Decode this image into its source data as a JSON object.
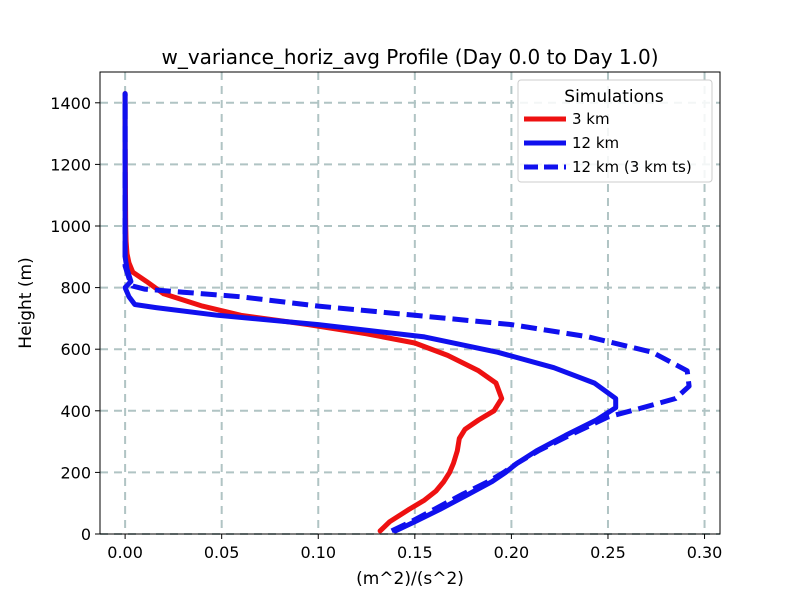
{
  "chart_data": {
    "type": "line",
    "title": "w_variance_horiz_avg Profile (Day 0.0 to Day 1.0)",
    "xlabel": "(m^2)/(s^2)",
    "ylabel": "Height (m)",
    "xlim": [
      -0.013,
      0.308
    ],
    "ylim": [
      0,
      1500
    ],
    "x_ticks": [
      0.0,
      0.05,
      0.1,
      0.15,
      0.2,
      0.25,
      0.3
    ],
    "x_tick_labels": [
      "0.00",
      "0.05",
      "0.10",
      "0.15",
      "0.20",
      "0.25",
      "0.30"
    ],
    "y_ticks": [
      0,
      200,
      400,
      600,
      800,
      1000,
      1200,
      1400
    ],
    "y_tick_labels": [
      "0",
      "200",
      "400",
      "600",
      "800",
      "1000",
      "1200",
      "1400"
    ],
    "grid": true,
    "legend": {
      "title": "Simulations",
      "location": "top-right"
    },
    "series": [
      {
        "name": "3 km",
        "color": "#ee1111",
        "style": "solid",
        "points": [
          [
            0.132,
            10
          ],
          [
            0.137,
            40
          ],
          [
            0.147,
            80
          ],
          [
            0.155,
            110
          ],
          [
            0.161,
            140
          ],
          [
            0.165,
            170
          ],
          [
            0.168,
            200
          ],
          [
            0.17,
            230
          ],
          [
            0.172,
            270
          ],
          [
            0.173,
            310
          ],
          [
            0.176,
            340
          ],
          [
            0.183,
            370
          ],
          [
            0.191,
            400
          ],
          [
            0.195,
            440
          ],
          [
            0.192,
            490
          ],
          [
            0.183,
            530
          ],
          [
            0.167,
            580
          ],
          [
            0.15,
            620
          ],
          [
            0.125,
            650
          ],
          [
            0.095,
            680
          ],
          [
            0.06,
            710
          ],
          [
            0.04,
            740
          ],
          [
            0.02,
            780
          ],
          [
            0.011,
            820
          ],
          [
            0.004,
            850
          ],
          [
            0.002,
            880
          ],
          [
            0.001,
            910
          ],
          [
            0.0005,
            950
          ],
          [
            0.0003,
            1000
          ],
          [
            0.0002,
            1100
          ],
          [
            0.0001,
            1200
          ],
          [
            0.0,
            1300
          ],
          [
            0.0,
            1430
          ]
        ]
      },
      {
        "name": "12 km",
        "color": "#1010ee",
        "style": "solid",
        "points": [
          [
            0.14,
            10
          ],
          [
            0.15,
            40
          ],
          [
            0.163,
            80
          ],
          [
            0.178,
            130
          ],
          [
            0.19,
            170
          ],
          [
            0.197,
            200
          ],
          [
            0.203,
            230
          ],
          [
            0.213,
            270
          ],
          [
            0.228,
            320
          ],
          [
            0.244,
            370
          ],
          [
            0.254,
            410
          ],
          [
            0.254,
            440
          ],
          [
            0.243,
            490
          ],
          [
            0.222,
            540
          ],
          [
            0.193,
            590
          ],
          [
            0.155,
            640
          ],
          [
            0.1,
            680
          ],
          [
            0.048,
            710
          ],
          [
            0.016,
            735
          ],
          [
            0.005,
            745
          ],
          [
            0.002,
            770
          ],
          [
            0.0,
            800
          ],
          [
            0.003,
            820
          ],
          [
            0.001,
            860
          ],
          [
            0.0,
            900
          ],
          [
            0.0,
            1000
          ],
          [
            0.0,
            1100
          ],
          [
            0.0,
            1200
          ],
          [
            0.0,
            1300
          ],
          [
            0.0,
            1430
          ]
        ]
      },
      {
        "name": "12 km (3 km ts)",
        "color": "#1010ee",
        "style": "dashed",
        "points": [
          [
            0.138,
            10
          ],
          [
            0.148,
            40
          ],
          [
            0.16,
            80
          ],
          [
            0.175,
            130
          ],
          [
            0.188,
            170
          ],
          [
            0.196,
            200
          ],
          [
            0.203,
            230
          ],
          [
            0.214,
            270
          ],
          [
            0.23,
            320
          ],
          [
            0.25,
            380
          ],
          [
            0.268,
            410
          ],
          [
            0.285,
            440
          ],
          [
            0.292,
            480
          ],
          [
            0.291,
            530
          ],
          [
            0.273,
            590
          ],
          [
            0.24,
            640
          ],
          [
            0.2,
            680
          ],
          [
            0.15,
            710
          ],
          [
            0.1,
            740
          ],
          [
            0.06,
            770
          ],
          [
            0.03,
            785
          ],
          [
            0.01,
            795
          ],
          [
            0.004,
            805
          ],
          [
            0.002,
            830
          ],
          [
            0.0,
            870
          ],
          [
            0.0,
            950
          ],
          [
            0.0,
            1050
          ],
          [
            0.0,
            1150
          ],
          [
            0.0,
            1250
          ],
          [
            0.0,
            1350
          ],
          [
            0.0,
            1430
          ]
        ]
      }
    ]
  }
}
